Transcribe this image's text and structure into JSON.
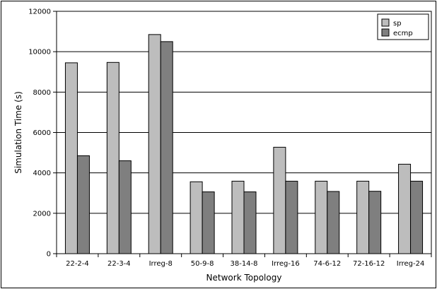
{
  "chart_data": {
    "type": "bar",
    "title": "",
    "xlabel": "Network Topology",
    "ylabel": "Simulation Time (s)",
    "ylim": [
      0,
      12000
    ],
    "yticks": [
      0,
      2000,
      4000,
      6000,
      8000,
      10000,
      12000
    ],
    "grid": "horizontal",
    "legend_position": "top-right",
    "categories": [
      "22-2-4",
      "22-3-4",
      "Irreg-8",
      "50-9-8",
      "38-14-8",
      "Irreg-16",
      "74-6-12",
      "72-16-12",
      "Irreg-24"
    ],
    "series": [
      {
        "name": "sp",
        "color": "#bdbdbd",
        "values": [
          9450,
          9470,
          10850,
          3560,
          3590,
          5270,
          3590,
          3590,
          4430
        ]
      },
      {
        "name": "ecmp",
        "color": "#7f7f7f",
        "values": [
          4850,
          4600,
          10500,
          3060,
          3060,
          3590,
          3080,
          3090,
          3590
        ]
      }
    ]
  }
}
